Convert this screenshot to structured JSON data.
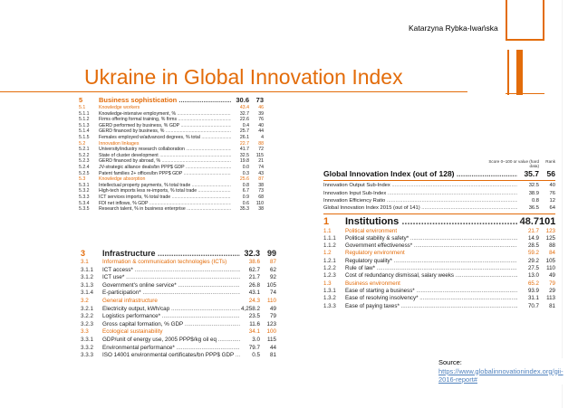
{
  "author": "Katarzyna Rybka-Iwańska",
  "title": "Ukraine in Global Innovation Index",
  "accent_color": "#e36c0a",
  "source": {
    "label": "Source:",
    "link_text": "https://www.globalinnovationindex.org/gii-2016-report#"
  },
  "panel1": {
    "rows": [
      {
        "type": "pillar",
        "num": "5",
        "label": "Business sophistication",
        "score": "30.6",
        "rank": "73"
      },
      {
        "type": "section",
        "num": "5.1",
        "label": "Knowledge workers",
        "score": "43.4",
        "rank": "46"
      },
      {
        "type": "item",
        "num": "5.1.1",
        "label": "Knowledge-intensive employment, %",
        "score": "32.7",
        "rank": "39"
      },
      {
        "type": "item",
        "num": "5.1.2",
        "label": "Firms offering formal training, % firms",
        "score": "22.6",
        "rank": "76"
      },
      {
        "type": "item",
        "num": "5.1.3",
        "label": "GERD performed by business, % GDP",
        "score": "0.4",
        "rank": "40"
      },
      {
        "type": "item",
        "num": "5.1.4",
        "label": "GERD financed by business, %",
        "score": "25.7",
        "rank": "44"
      },
      {
        "type": "item",
        "num": "5.1.5",
        "label": "Females employed w/advanced degrees, % total",
        "score": "26.1",
        "rank": "4"
      },
      {
        "type": "section",
        "num": "5.2",
        "label": "Innovation linkages",
        "score": "22.7",
        "rank": "88"
      },
      {
        "type": "item",
        "num": "5.2.1",
        "label": "University/industry research collaboration",
        "score": "41.7",
        "rank": "72"
      },
      {
        "type": "item",
        "num": "5.2.2",
        "label": "State of cluster development",
        "score": "32.5",
        "rank": "115"
      },
      {
        "type": "item",
        "num": "5.2.3",
        "label": "GERD financed by abroad, %",
        "score": "19.8",
        "rank": "21"
      },
      {
        "type": "item",
        "num": "5.2.4",
        "label": "JV-strategic alliance deals/bn PPP$ GDP",
        "score": "0.0",
        "rank": "74"
      },
      {
        "type": "item",
        "num": "5.2.5",
        "label": "Patent families 2+ offices/bn PPP$ GDP",
        "score": "0.3",
        "rank": "43"
      },
      {
        "type": "section",
        "num": "5.3",
        "label": "Knowledge absorption",
        "score": "25.6",
        "rank": "87"
      },
      {
        "type": "item",
        "num": "5.3.1",
        "label": "Intellectual property payments, % total trade",
        "score": "0.8",
        "rank": "38"
      },
      {
        "type": "item",
        "num": "5.3.2",
        "label": "High-tech imports less re-imports, % total trade",
        "score": "6.7",
        "rank": "73"
      },
      {
        "type": "item",
        "num": "5.3.3",
        "label": "ICT services imports, % total trade",
        "score": "0.9",
        "rank": "68"
      },
      {
        "type": "item",
        "num": "5.3.4",
        "label": "FDI net inflows, % GDP",
        "score": "0.6",
        "rank": "110"
      },
      {
        "type": "item",
        "num": "5.3.5",
        "label": "Research talent, % in business enterprise",
        "score": "35.3",
        "rank": "38"
      }
    ]
  },
  "panel2": {
    "rows": [
      {
        "type": "pillar",
        "num": "3",
        "label": "Infrastructure",
        "score": "32.3",
        "rank": "99"
      },
      {
        "type": "section",
        "num": "3.1",
        "label": "Information & communication technologies (ICTs)",
        "score": "38.6",
        "rank": "87"
      },
      {
        "type": "item",
        "num": "3.1.1",
        "label": "ICT access*",
        "score": "62.7",
        "rank": "62"
      },
      {
        "type": "item",
        "num": "3.1.2",
        "label": "ICT use*",
        "score": "21.7",
        "rank": "92"
      },
      {
        "type": "item",
        "num": "3.1.3",
        "label": "Government's online service*",
        "score": "26.8",
        "rank": "105"
      },
      {
        "type": "item",
        "num": "3.1.4",
        "label": "E-participation*",
        "score": "43.1",
        "rank": "74"
      },
      {
        "type": "section",
        "num": "3.2",
        "label": "General infrastructure",
        "score": "24.3",
        "rank": "110"
      },
      {
        "type": "item",
        "num": "3.2.1",
        "label": "Electricity output, kWh/cap",
        "score": "4,258.2",
        "rank": "49"
      },
      {
        "type": "item",
        "num": "3.2.2",
        "label": "Logistics performance*",
        "score": "23.5",
        "rank": "79"
      },
      {
        "type": "item",
        "num": "3.2.3",
        "label": "Gross capital formation, % GDP",
        "score": "11.6",
        "rank": "123"
      },
      {
        "type": "section",
        "num": "3.3",
        "label": "Ecological sustainability",
        "score": "34.1",
        "rank": "100"
      },
      {
        "type": "item",
        "num": "3.3.1",
        "label": "GDP/unit of energy use, 2005 PPP$/kg oil eq",
        "score": "3.0",
        "rank": "115"
      },
      {
        "type": "item",
        "num": "3.3.2",
        "label": "Environmental performance*",
        "score": "79.7",
        "rank": "44"
      },
      {
        "type": "item",
        "num": "3.3.3",
        "label": "ISO 14001 environmental certificates/bn PPP$ GDP",
        "score": "0.5",
        "rank": "81"
      }
    ]
  },
  "panel3": {
    "header": {
      "score_label": "Score 0–100 or value (hard data)",
      "rank_label": "Rank"
    },
    "gii": {
      "label": "Global Innovation Index (out of 128)",
      "score": "35.7",
      "rank": "56"
    },
    "sub_rows": [
      {
        "label": "Innovation Output Sub-Index",
        "score": "32.5",
        "rank": "40"
      },
      {
        "label": "Innovation Input Sub-Index",
        "score": "38.9",
        "rank": "76"
      },
      {
        "label": "Innovation Efficiency Ratio",
        "score": "0.8",
        "rank": "12"
      },
      {
        "label": "Global Innovation Index 2015 (out of 141)",
        "score": "36.5",
        "rank": "64"
      }
    ],
    "rows": [
      {
        "type": "pillar",
        "num": "1",
        "label": "Institutions",
        "score": "48.7",
        "rank": "101"
      },
      {
        "type": "section",
        "num": "1.1",
        "label": "Political environment",
        "score": "21.7",
        "rank": "123"
      },
      {
        "type": "item",
        "num": "1.1.1",
        "label": "Political stability & safety*",
        "score": "14.9",
        "rank": "125"
      },
      {
        "type": "item",
        "num": "1.1.2",
        "label": "Government effectiveness*",
        "score": "28.5",
        "rank": "88"
      },
      {
        "type": "section",
        "num": "1.2",
        "label": "Regulatory environment",
        "score": "59.2",
        "rank": "84"
      },
      {
        "type": "item",
        "num": "1.2.1",
        "label": "Regulatory quality*",
        "score": "29.2",
        "rank": "105"
      },
      {
        "type": "item",
        "num": "1.2.2",
        "label": "Rule of law*",
        "score": "27.5",
        "rank": "110"
      },
      {
        "type": "item",
        "num": "1.2.3",
        "label": "Cost of redundancy dismissal, salary weeks",
        "score": "13.0",
        "rank": "49"
      },
      {
        "type": "section",
        "num": "1.3",
        "label": "Business environment",
        "score": "65.2",
        "rank": "79"
      },
      {
        "type": "item",
        "num": "1.3.1",
        "label": "Ease of starting a business*",
        "score": "93.9",
        "rank": "29"
      },
      {
        "type": "item",
        "num": "1.3.2",
        "label": "Ease of resolving insolvency*",
        "score": "31.1",
        "rank": "113"
      },
      {
        "type": "item",
        "num": "1.3.3",
        "label": "Ease of paying taxes*",
        "score": "70.7",
        "rank": "81"
      }
    ]
  }
}
